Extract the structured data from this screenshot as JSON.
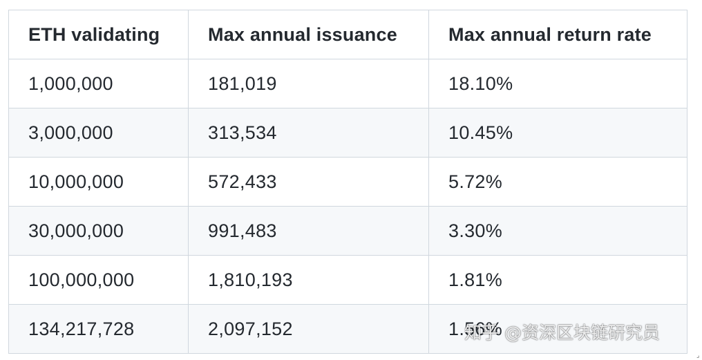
{
  "table": {
    "headers": [
      "ETH validating",
      "Max annual issuance",
      "Max annual return rate"
    ],
    "rows": [
      [
        "1,000,000",
        "181,019",
        "18.10%"
      ],
      [
        "3,000,000",
        "313,534",
        "10.45%"
      ],
      [
        "10,000,000",
        "572,433",
        "5.72%"
      ],
      [
        "30,000,000",
        "991,483",
        "3.30%"
      ],
      [
        "100,000,000",
        "1,810,193",
        "1.81%"
      ],
      [
        "134,217,728",
        "2,097,152",
        "1.56%"
      ]
    ]
  },
  "watermark": {
    "text": "知乎 @资深区块链研究员"
  }
}
